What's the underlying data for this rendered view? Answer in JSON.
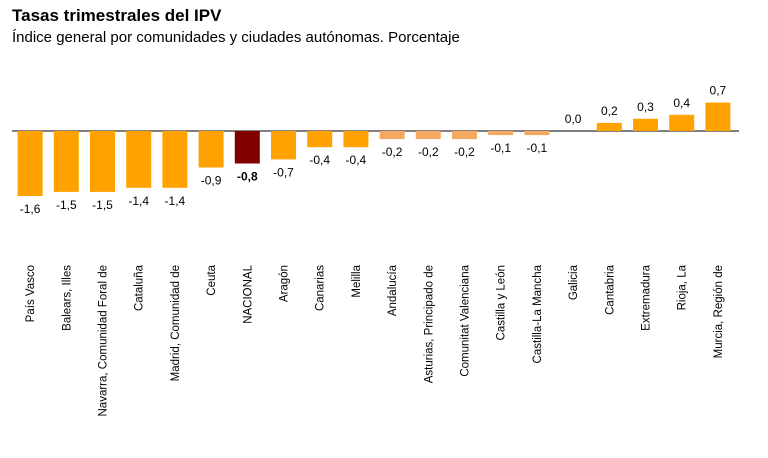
{
  "header": {
    "title": "Tasas trimestrales del IPV",
    "subtitle": "Índice general por comunidades y ciudades autónomas. Porcentaje"
  },
  "colors": {
    "bar": "#FFA200",
    "bar_light": "#F5A862",
    "highlight": "#800000",
    "axis": "#000000"
  },
  "chart_data": {
    "type": "bar",
    "title": "Tasas trimestrales del IPV",
    "subtitle": "Índice general por comunidades y ciudades autónomas. Porcentaje",
    "xlabel": "",
    "ylabel": "",
    "ylim": [
      -1.6,
      0.7
    ],
    "grid": false,
    "highlight_category": "NACIONAL",
    "categories": [
      "País Vasco",
      "Balears, Illes",
      "Navarra, Comunidad Foral de",
      "Cataluña",
      "Madrid, Comunidad de",
      "Ceuta",
      "NACIONAL",
      "Aragón",
      "Canarias",
      "Melilla",
      "Andalucía",
      "Asturias, Principado de",
      "Comunitat Valenciana",
      "Castilla y León",
      "Castilla-La Mancha",
      "Galicia",
      "Cantabria",
      "Extremadura",
      "Rioja, La",
      "Murcia, Región de"
    ],
    "values": [
      -1.6,
      -1.5,
      -1.5,
      -1.4,
      -1.4,
      -0.9,
      -0.8,
      -0.7,
      -0.4,
      -0.4,
      -0.2,
      -0.2,
      -0.2,
      -0.1,
      -0.1,
      0.0,
      0.2,
      0.3,
      0.4,
      0.7
    ],
    "labels": [
      "-1,6",
      "-1,5",
      "-1,5",
      "-1,4",
      "-1,4",
      "-0,9",
      "-0,8",
      "-0,7",
      "-0,4",
      "-0,4",
      "-0,2",
      "-0,2",
      "-0,2",
      "-0,1",
      "-0,1",
      "0,0",
      "0,2",
      "0,3",
      "0,4",
      "0,7"
    ]
  }
}
